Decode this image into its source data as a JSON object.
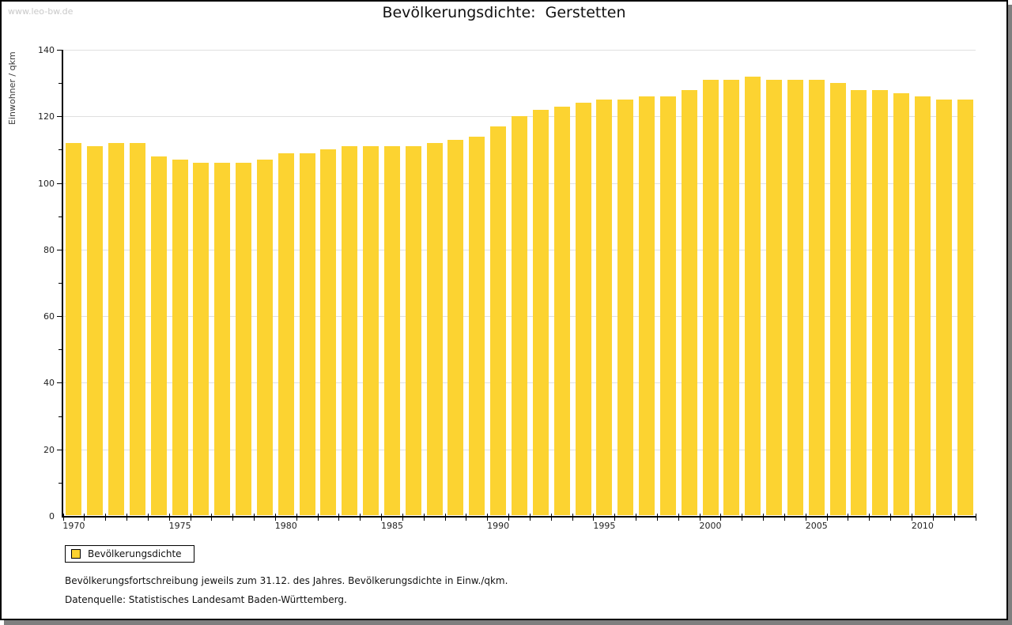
{
  "header": {
    "watermark": "www.leo-bw.de",
    "title": "Bevölkerungsdichte:  Gerstetten"
  },
  "chart_data": {
    "type": "bar",
    "title": "Bevölkerungsdichte: Gerstetten",
    "xlabel": "",
    "ylabel": "Einwohner / qkm",
    "ylim": [
      0,
      140
    ],
    "y_major_step": 20,
    "y_minor_step": 10,
    "grid": true,
    "legend_position": "bottom-left",
    "bar_color": "#fcd331",
    "x_labeled_ticks": [
      1970,
      1975,
      1980,
      1985,
      1990,
      1995,
      2000,
      2005,
      2010
    ],
    "categories": [
      1970,
      1971,
      1972,
      1973,
      1974,
      1975,
      1976,
      1977,
      1978,
      1979,
      1980,
      1981,
      1982,
      1983,
      1984,
      1985,
      1986,
      1987,
      1988,
      1989,
      1990,
      1991,
      1992,
      1993,
      1994,
      1995,
      1996,
      1997,
      1998,
      1999,
      2000,
      2001,
      2002,
      2003,
      2004,
      2005,
      2006,
      2007,
      2008,
      2009,
      2010,
      2011,
      2012
    ],
    "values": [
      112,
      111,
      112,
      112,
      108,
      107,
      106,
      106,
      106,
      107,
      109,
      109,
      110,
      111,
      111,
      111,
      111,
      112,
      113,
      114,
      117,
      120,
      122,
      123,
      124,
      125,
      125,
      126,
      126,
      128,
      131,
      131,
      132,
      131,
      131,
      131,
      130,
      128,
      128,
      127,
      126,
      125,
      125
    ]
  },
  "legend": {
    "items": [
      {
        "label": "Bevölkerungsdichte",
        "color": "#fcd331"
      }
    ]
  },
  "footer": {
    "line1": "Bevölkerungsfortschreibung jeweils zum 31.12. des Jahres. Bevölkerungsdichte in Einw./qkm.",
    "line2": "Datenquelle: Statistisches Landesamt Baden-Württemberg."
  }
}
